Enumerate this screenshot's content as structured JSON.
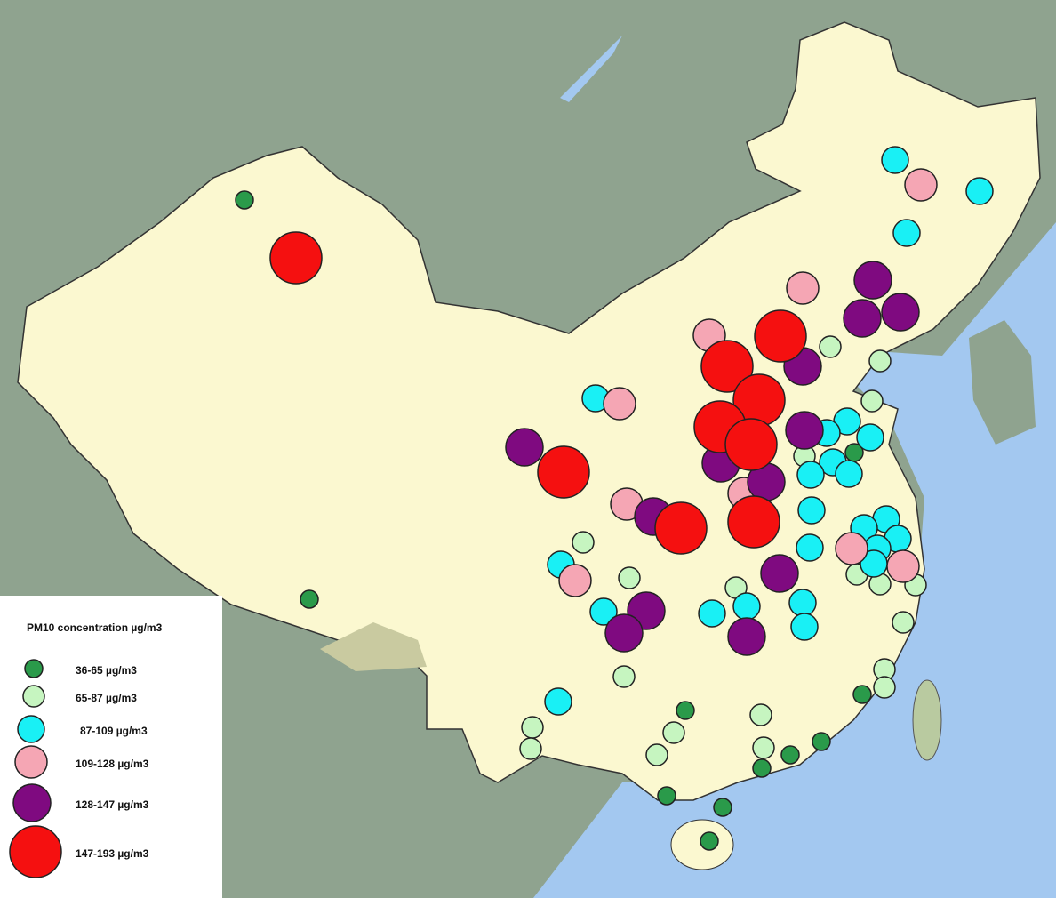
{
  "legend": {
    "title": "PM10 concentration  µg/m3",
    "items": [
      {
        "label": "36-65 µg/m3",
        "color": "#2a9a4a"
      },
      {
        "label": "65-87 µg/m3",
        "color": "#c6f5c0"
      },
      {
        "label": "87-109 µg/m3",
        "color": "#19f0f5"
      },
      {
        "label": "109-128 µg/m3",
        "color": "#f5a6b4"
      },
      {
        "label": "128-147 µg/m3",
        "color": "#7f0a80"
      },
      {
        "label": "147-193 µg/m3",
        "color": "#f51010"
      }
    ]
  }
}
